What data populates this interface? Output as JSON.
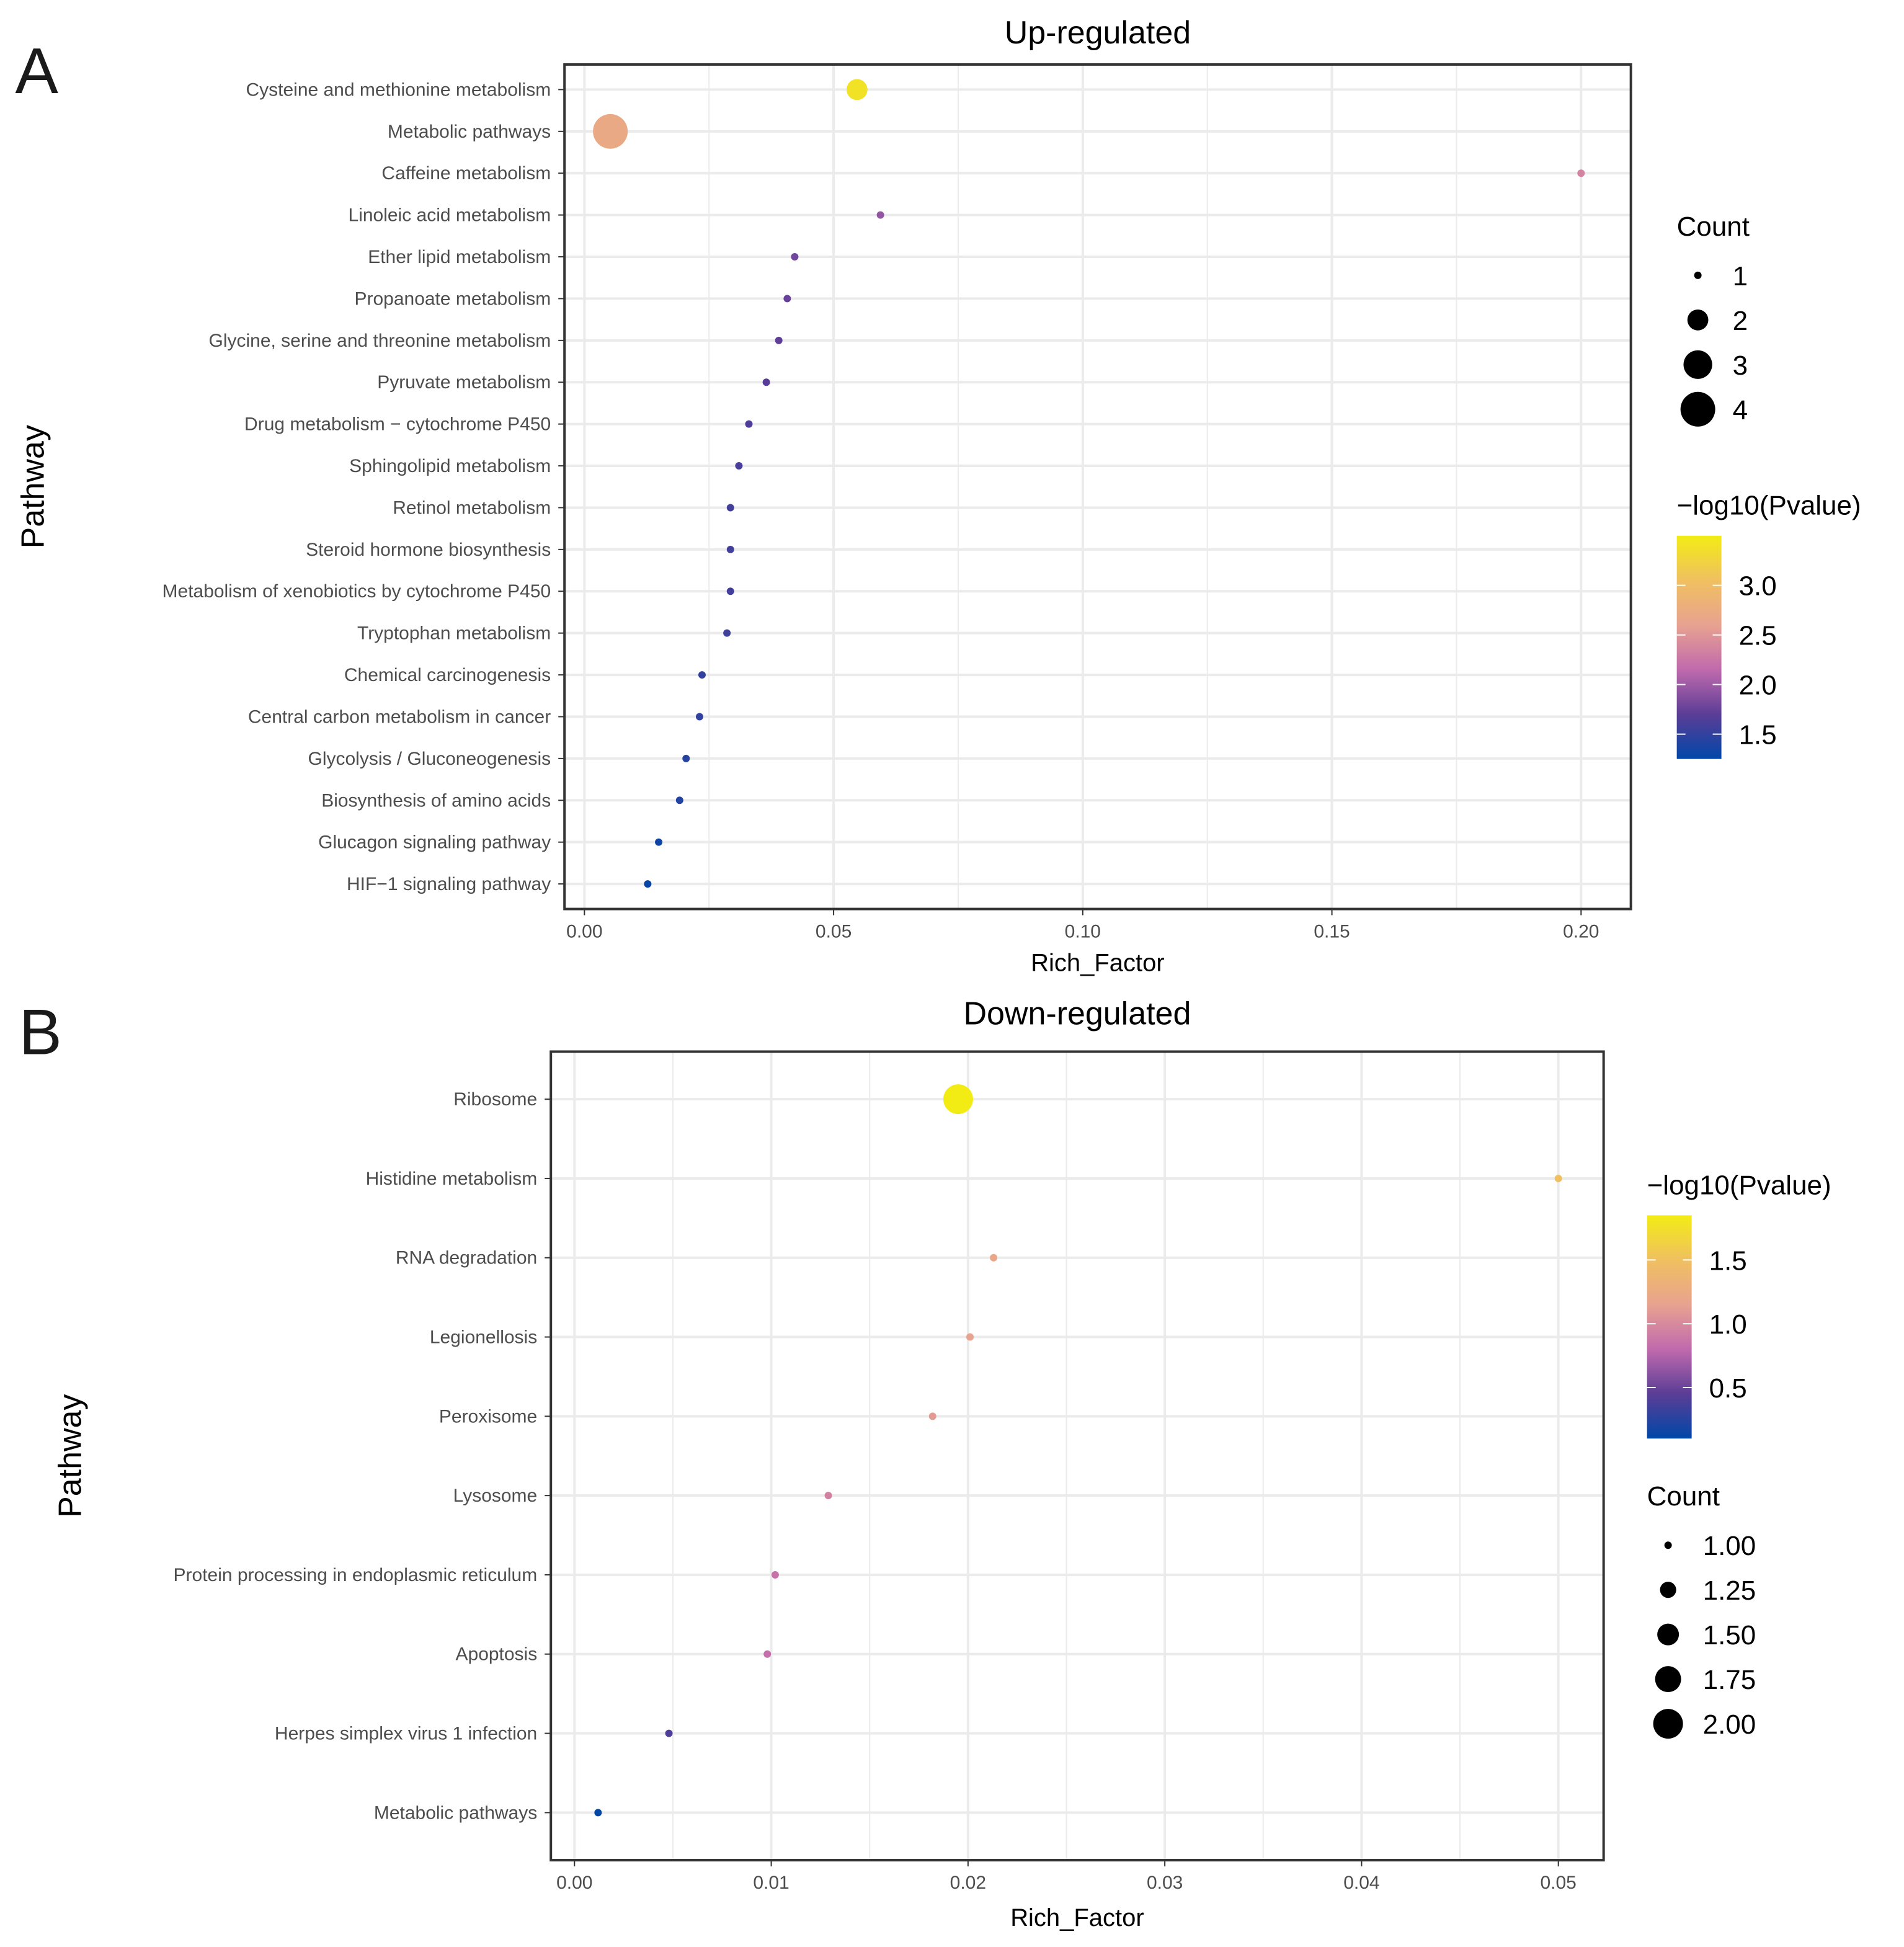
{
  "chart_data": [
    {
      "type": "scatter",
      "panel_label": "A",
      "title": "Up-regulated",
      "xlabel": "Rich_Factor",
      "ylabel": "Pathway",
      "xlim": [
        -0.004,
        0.21
      ],
      "xticks": [
        0,
        0.05,
        0.1,
        0.15,
        0.2
      ],
      "xtick_labels": [
        "0.00",
        "0.05",
        "0.10",
        "0.15",
        "0.20"
      ],
      "grid": true,
      "color_legend": {
        "title": "−log10(Pvalue)",
        "range": [
          1.25,
          3.5
        ],
        "ticks": [
          "3.0",
          "2.5",
          "2.0",
          "1.5"
        ],
        "tick_values": [
          3.0,
          2.5,
          2.0,
          1.5
        ]
      },
      "size_legend": {
        "title": "Count",
        "labels": [
          "1",
          "2",
          "3",
          "4"
        ],
        "values": [
          1,
          2,
          3,
          4
        ]
      },
      "legend_order": [
        "size",
        "color"
      ],
      "points": [
        {
          "pathway": "Cysteine and methionine metabolism",
          "rich_factor": 0.0547,
          "count": 2,
          "neglog10p": 3.4
        },
        {
          "pathway": "Metabolic pathways",
          "rich_factor": 0.0052,
          "count": 4,
          "neglog10p": 2.7
        },
        {
          "pathway": "Caffeine metabolism",
          "rich_factor": 0.2,
          "count": 1,
          "neglog10p": 2.35
        },
        {
          "pathway": "Linoleic acid metabolism",
          "rich_factor": 0.0594,
          "count": 1,
          "neglog10p": 1.95
        },
        {
          "pathway": "Ether lipid metabolism",
          "rich_factor": 0.0422,
          "count": 1,
          "neglog10p": 1.8
        },
        {
          "pathway": "Propanoate metabolism",
          "rich_factor": 0.0407,
          "count": 1,
          "neglog10p": 1.75
        },
        {
          "pathway": "Glycine, serine and threonine metabolism",
          "rich_factor": 0.039,
          "count": 1,
          "neglog10p": 1.72
        },
        {
          "pathway": "Pyruvate metabolism",
          "rich_factor": 0.0365,
          "count": 1,
          "neglog10p": 1.68
        },
        {
          "pathway": "Drug metabolism − cytochrome P450",
          "rich_factor": 0.033,
          "count": 1,
          "neglog10p": 1.64
        },
        {
          "pathway": "Sphingolipid metabolism",
          "rich_factor": 0.031,
          "count": 1,
          "neglog10p": 1.6
        },
        {
          "pathway": "Retinol metabolism",
          "rich_factor": 0.0293,
          "count": 1,
          "neglog10p": 1.58
        },
        {
          "pathway": "Steroid hormone biosynthesis",
          "rich_factor": 0.0293,
          "count": 1,
          "neglog10p": 1.58
        },
        {
          "pathway": "Metabolism of xenobiotics by cytochrome P450",
          "rich_factor": 0.0293,
          "count": 1,
          "neglog10p": 1.58
        },
        {
          "pathway": "Tryptophan metabolism",
          "rich_factor": 0.0286,
          "count": 1,
          "neglog10p": 1.56
        },
        {
          "pathway": "Chemical carcinogenesis",
          "rich_factor": 0.0236,
          "count": 1,
          "neglog10p": 1.5
        },
        {
          "pathway": "Central carbon metabolism in cancer",
          "rich_factor": 0.0231,
          "count": 1,
          "neglog10p": 1.49
        },
        {
          "pathway": "Glycolysis / Gluconeogenesis",
          "rich_factor": 0.0204,
          "count": 1,
          "neglog10p": 1.44
        },
        {
          "pathway": "Biosynthesis of amino acids",
          "rich_factor": 0.0191,
          "count": 1,
          "neglog10p": 1.42
        },
        {
          "pathway": "Glucagon signaling pathway",
          "rich_factor": 0.0149,
          "count": 1,
          "neglog10p": 1.32
        },
        {
          "pathway": "HIF−1 signaling pathway",
          "rich_factor": 0.0127,
          "count": 1,
          "neglog10p": 1.28
        }
      ]
    },
    {
      "type": "scatter",
      "panel_label": "B",
      "title": "Down-regulated",
      "xlabel": "Rich_Factor",
      "ylabel": "Pathway",
      "xlim": [
        -0.0012,
        0.0523
      ],
      "xticks": [
        0,
        0.01,
        0.02,
        0.03,
        0.04,
        0.05
      ],
      "xtick_labels": [
        "0.00",
        "0.01",
        "0.02",
        "0.03",
        "0.04",
        "0.05"
      ],
      "grid": true,
      "color_legend": {
        "title": "−log10(Pvalue)",
        "range": [
          0.1,
          1.85
        ],
        "ticks": [
          "1.5",
          "1.0",
          "0.5"
        ],
        "tick_values": [
          1.5,
          1.0,
          0.5
        ]
      },
      "size_legend": {
        "title": "Count",
        "labels": [
          "1.00",
          "1.25",
          "1.50",
          "1.75",
          "2.00"
        ],
        "values": [
          1,
          1.25,
          1.5,
          1.75,
          2
        ]
      },
      "legend_order": [
        "color",
        "size"
      ],
      "points": [
        {
          "pathway": "Ribosome",
          "rich_factor": 0.0195,
          "count": 2,
          "neglog10p": 1.85
        },
        {
          "pathway": "Histidine metabolism",
          "rich_factor": 0.05,
          "count": 1,
          "neglog10p": 1.5
        },
        {
          "pathway": "RNA degradation",
          "rich_factor": 0.0213,
          "count": 1,
          "neglog10p": 1.2
        },
        {
          "pathway": "Legionellosis",
          "rich_factor": 0.0201,
          "count": 1,
          "neglog10p": 1.15
        },
        {
          "pathway": "Peroxisome",
          "rich_factor": 0.0182,
          "count": 1,
          "neglog10p": 1.1
        },
        {
          "pathway": "Lysosome",
          "rich_factor": 0.0129,
          "count": 1,
          "neglog10p": 0.95
        },
        {
          "pathway": "Protein processing in endoplasmic reticulum",
          "rich_factor": 0.0102,
          "count": 1,
          "neglog10p": 0.85
        },
        {
          "pathway": "Apoptosis",
          "rich_factor": 0.0098,
          "count": 1,
          "neglog10p": 0.84
        },
        {
          "pathway": "Herpes simplex virus 1 infection",
          "rich_factor": 0.0048,
          "count": 1,
          "neglog10p": 0.4
        },
        {
          "pathway": "Metabolic pathways",
          "rich_factor": 0.0012,
          "count": 1,
          "neglog10p": 0.1
        }
      ]
    }
  ],
  "colors": {
    "gradient": [
      "#0047a8",
      "#5b3d96",
      "#c06aad",
      "#e8a290",
      "#f0c060",
      "#f2ec14"
    ],
    "grid": "#ebebeb",
    "border": "#333333"
  }
}
